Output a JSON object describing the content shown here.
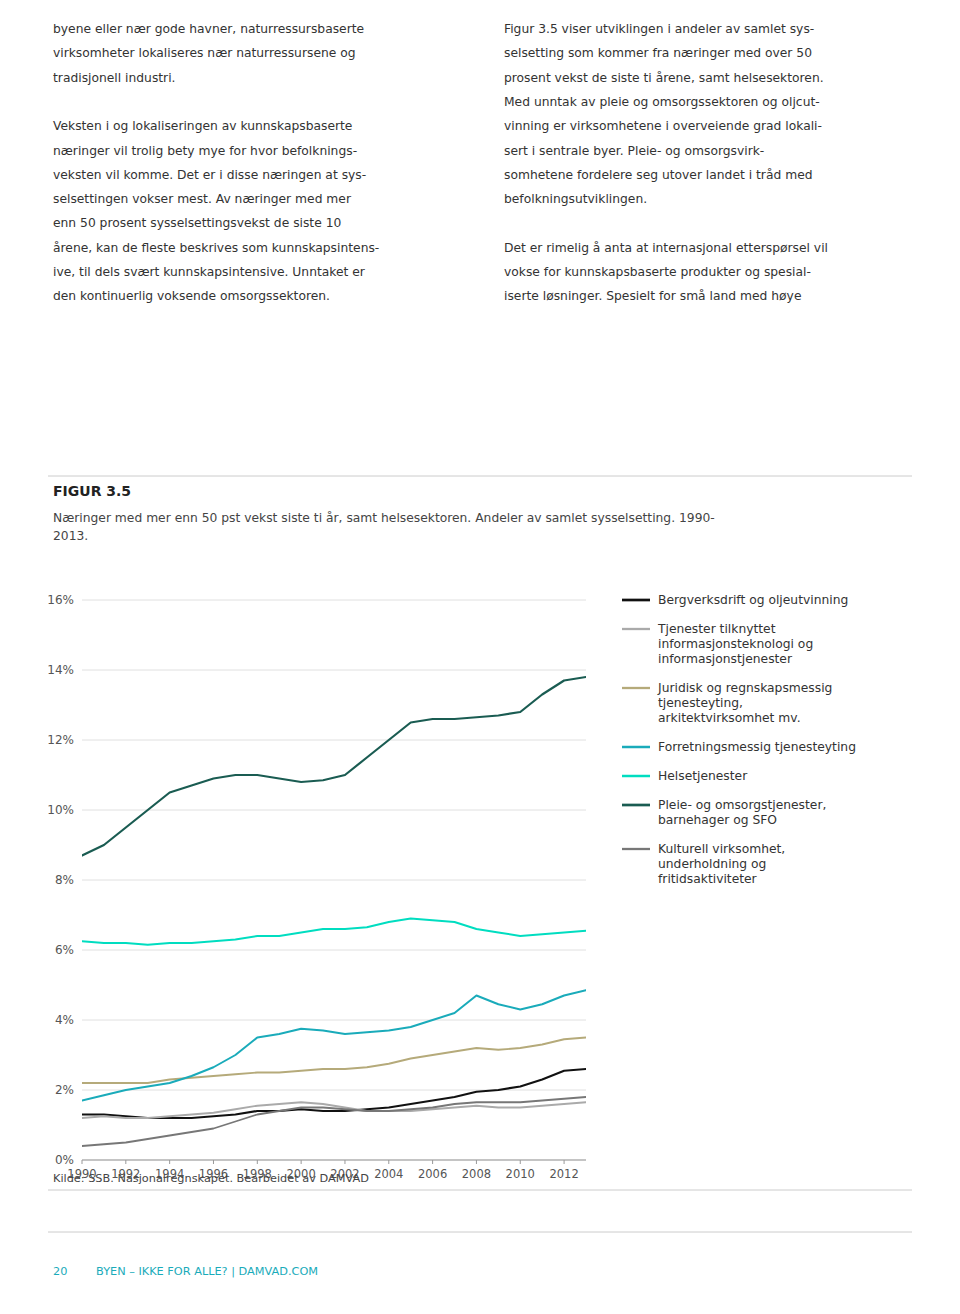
{
  "chart_data": {
    "type": "line",
    "title": "FIGUR 3.5",
    "subtitle": "Næringer med mer enn 50 pst vekst siste ti år, samt helsesektoren. Andeler av samlet sysselsetting. 1990-\n2013.",
    "annotations": [
      [
        [
          "byene eller nær gode havner, naturressursbaserte",
          "virksomheter lokaliseres nær naturressursene og",
          "tradisjonell industri."
        ],
        [
          "Veksten i og lokaliseringen av kunnskapsbaserte",
          "næringer vil trolig bety mye for hvor befolknings-",
          "veksten vil komme. Det er i disse næringen at sys-",
          "selsettingen vokser mest. Av næringer med mer",
          "enn 50 prosent sysselsettingsvekst de siste 10",
          "årene, kan de fleste beskrives som kunnskapsintens-",
          "ive, til dels svært kunnskapsintensive. Unntaket er",
          "den kontinuerlig voksende omsorgssektoren."
        ]
      ],
      [
        [
          "Figur 3.5 viser utviklingen i andeler av samlet sys-",
          "selsetting som kommer fra næringer med over 50",
          "prosent vekst de siste ti årene, samt helsesektoren.",
          "Med unntak av pleie og omsorgssektoren og oljcut-",
          "vinning er virksomhetene i overveiende grad lokali-",
          "sert i sentrale byer. Pleie- og omsorgsvirk-",
          "somhetene fordelere seg utover landet i tråd med",
          "befolkningsutviklingen."
        ],
        [
          "Det er rimelig å anta at internasjonal etterspørsel vil",
          "vokse for kunnskapsbaserte produkter og spesial-",
          "iserte løsninger. Spesielt for små land med høye"
        ]
      ],
      "Kilde: SSB. Nasjonalregnskapet. Bearbeidet av DAMVAD",
      "20",
      "BYEN – IKKE FOR ALLE? | DAMVAD.COM"
    ],
    "x": [
      1990,
      1991,
      1992,
      1993,
      1994,
      1995,
      1996,
      1997,
      1998,
      1999,
      2000,
      2001,
      2002,
      2003,
      2004,
      2005,
      2006,
      2007,
      2008,
      2009,
      2010,
      2011,
      2012,
      2013
    ],
    "series": [
      {
        "name": "Bergverksdrift og oljeutvinning",
        "color": "#111111",
        "values": [
          1.3,
          1.3,
          1.25,
          1.2,
          1.2,
          1.2,
          1.25,
          1.3,
          1.4,
          1.4,
          1.45,
          1.4,
          1.4,
          1.45,
          1.5,
          1.6,
          1.7,
          1.8,
          1.95,
          2.0,
          2.1,
          2.3,
          2.55,
          2.6
        ]
      },
      {
        "name": "Tjenester tilknyttet\ninformasjonsteknologi og\ninformasjonstjenester",
        "color": "#aaaaaa",
        "values": [
          1.2,
          1.25,
          1.2,
          1.2,
          1.25,
          1.3,
          1.35,
          1.45,
          1.55,
          1.6,
          1.65,
          1.6,
          1.5,
          1.4,
          1.4,
          1.4,
          1.45,
          1.5,
          1.55,
          1.5,
          1.5,
          1.55,
          1.6,
          1.65
        ]
      },
      {
        "name": "Juridisk og regnskapsmessig\ntjenesteyting,\narkitektvirksomhet mv.",
        "color": "#b5aa7a",
        "values": [
          2.2,
          2.2,
          2.2,
          2.2,
          2.3,
          2.35,
          2.4,
          2.45,
          2.5,
          2.5,
          2.55,
          2.6,
          2.6,
          2.65,
          2.75,
          2.9,
          3.0,
          3.1,
          3.2,
          3.15,
          3.2,
          3.3,
          3.45,
          3.5
        ]
      },
      {
        "name": "Forretningsmessig tjenesteyting",
        "color": "#1aabba",
        "values": [
          1.7,
          1.85,
          2.0,
          2.1,
          2.2,
          2.4,
          2.65,
          3.0,
          3.5,
          3.6,
          3.75,
          3.7,
          3.6,
          3.65,
          3.7,
          3.8,
          4.0,
          4.2,
          4.7,
          4.45,
          4.3,
          4.45,
          4.7,
          4.85
        ]
      },
      {
        "name": "Helsetjenester",
        "color": "#00ddc0",
        "values": [
          6.25,
          6.2,
          6.2,
          6.15,
          6.2,
          6.2,
          6.25,
          6.3,
          6.4,
          6.4,
          6.5,
          6.6,
          6.6,
          6.65,
          6.8,
          6.9,
          6.85,
          6.8,
          6.6,
          6.5,
          6.4,
          6.45,
          6.5,
          6.55
        ]
      },
      {
        "name": "Pleie- og omsorgstjenester,\nbarnehager og SFO",
        "color": "#1a5c52",
        "values": [
          8.7,
          9.0,
          9.5,
          10.0,
          10.5,
          10.7,
          10.9,
          11.0,
          11.0,
          10.9,
          10.8,
          10.85,
          11.0,
          11.5,
          12.0,
          12.5,
          12.6,
          12.6,
          12.65,
          12.7,
          12.8,
          13.3,
          13.7,
          13.8
        ]
      },
      {
        "name": "Kulturell virksomhet,\nunderholdning og\nfritidsaktiviteter",
        "color": "#777777",
        "values": [
          0.4,
          0.45,
          0.5,
          0.6,
          0.7,
          0.8,
          0.9,
          1.1,
          1.3,
          1.4,
          1.5,
          1.5,
          1.45,
          1.4,
          1.4,
          1.45,
          1.5,
          1.6,
          1.65,
          1.65,
          1.65,
          1.7,
          1.75,
          1.8
        ]
      }
    ],
    "xlim": [
      1990,
      2013
    ],
    "xticks": [
      1990,
      1992,
      1994,
      1996,
      1998,
      2000,
      2002,
      2004,
      2006,
      2008,
      2010,
      2012
    ],
    "ylim": [
      0,
      16
    ],
    "yticks": [
      {
        "value": 0,
        "label": "0%"
      },
      {
        "value": 2,
        "label": "2%"
      },
      {
        "value": 4,
        "label": "4%"
      },
      {
        "value": 6,
        "label": "6%"
      },
      {
        "value": 8,
        "label": "8%"
      },
      {
        "value": 10,
        "label": "10%"
      },
      {
        "value": 12,
        "label": "12%"
      },
      {
        "value": 14,
        "label": "14%"
      },
      {
        "value": 16,
        "label": "16%"
      }
    ],
    "grid": true,
    "legend": "right"
  }
}
